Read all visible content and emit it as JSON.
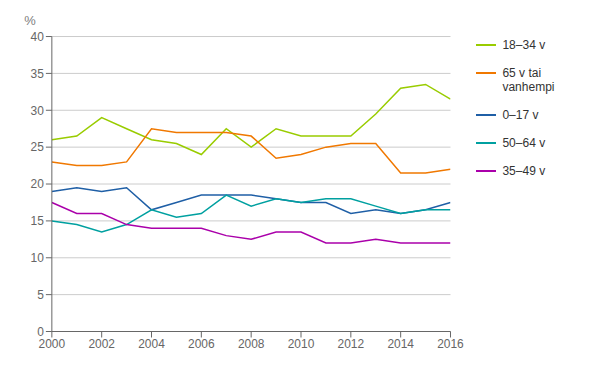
{
  "chart_data": {
    "type": "line",
    "ylabel": "%",
    "x": [
      2000,
      2001,
      2002,
      2003,
      2004,
      2005,
      2006,
      2007,
      2008,
      2009,
      2010,
      2011,
      2012,
      2013,
      2014,
      2015,
      2016
    ],
    "series": [
      {
        "name": "18–34 v",
        "color": "#99cc00",
        "values": [
          26.0,
          26.5,
          29.0,
          27.5,
          26.0,
          25.5,
          24.0,
          27.5,
          25.0,
          27.5,
          26.5,
          26.5,
          26.5,
          29.5,
          33.0,
          33.5,
          31.5
        ]
      },
      {
        "name": "65 v tai\nvanhempi",
        "color": "#f07800",
        "values": [
          23.0,
          22.5,
          22.5,
          23.0,
          27.5,
          27.0,
          27.0,
          27.0,
          26.5,
          23.5,
          24.0,
          25.0,
          25.5,
          25.5,
          21.5,
          21.5,
          22.0
        ]
      },
      {
        "name": "0–17 v",
        "color": "#1f5fa6",
        "values": [
          19.0,
          19.5,
          19.0,
          19.5,
          16.5,
          17.5,
          18.5,
          18.5,
          18.5,
          18.0,
          17.5,
          17.5,
          16.0,
          16.5,
          16.0,
          16.5,
          17.5
        ]
      },
      {
        "name": "50–64 v",
        "color": "#00a0a0",
        "values": [
          15.0,
          14.5,
          13.5,
          14.5,
          16.5,
          15.5,
          16.0,
          18.5,
          17.0,
          18.0,
          17.5,
          18.0,
          18.0,
          17.0,
          16.0,
          16.5,
          16.5
        ]
      },
      {
        "name": "35–49 v",
        "color": "#aa00aa",
        "values": [
          17.5,
          16.0,
          16.0,
          14.5,
          14.0,
          14.0,
          14.0,
          13.0,
          12.5,
          13.5,
          13.5,
          12.0,
          12.0,
          12.5,
          12.0,
          12.0,
          12.0
        ]
      }
    ],
    "xlim": [
      2000,
      2016
    ],
    "ylim": [
      0,
      40
    ],
    "xticks": [
      2000,
      2002,
      2004,
      2006,
      2008,
      2010,
      2012,
      2014,
      2016
    ],
    "yticks": [
      0,
      5,
      10,
      15,
      20,
      25,
      30,
      35,
      40
    ],
    "grid": true,
    "legend": "right"
  }
}
